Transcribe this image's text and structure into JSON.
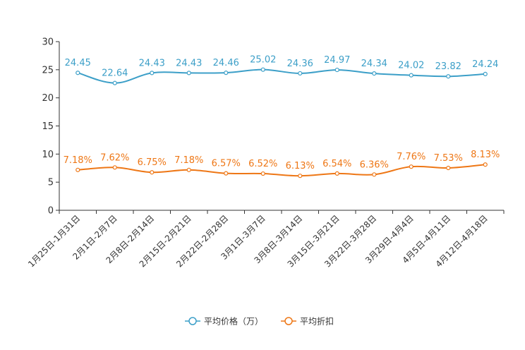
{
  "chart_data": {
    "type": "line",
    "categories": [
      "1月25日-1月31日",
      "2月1日-2月7日",
      "2月8日-2月14日",
      "2月15日-2月21日",
      "2月22日-2月28日",
      "3月1日-3月7日",
      "3月8日-3月14日",
      "3月15日-3月21日",
      "3月22日-3月28日",
      "3月29日-4月4日",
      "4月5日-4月11日",
      "4月12日-4月18日"
    ],
    "ylim": [
      0,
      30
    ],
    "yticks": [
      "0",
      "5",
      "10",
      "15",
      "20",
      "25",
      "30"
    ],
    "series": [
      {
        "name": "平均价格（万）",
        "color": "#3c9fc8",
        "values": [
          24.45,
          22.64,
          24.43,
          24.43,
          24.46,
          25.02,
          24.36,
          24.97,
          24.34,
          24.02,
          23.82,
          24.24
        ],
        "labels": [
          "24.45",
          "22.64",
          "24.43",
          "24.43",
          "24.46",
          "25.02",
          "24.36",
          "24.97",
          "24.34",
          "24.02",
          "23.82",
          "24.24"
        ]
      },
      {
        "name": "平均折扣",
        "color": "#ee7716",
        "values": [
          7.18,
          7.62,
          6.75,
          7.18,
          6.57,
          6.52,
          6.13,
          6.54,
          6.36,
          7.76,
          7.53,
          8.13
        ],
        "labels": [
          "7.18%",
          "7.62%",
          "6.75%",
          "7.18%",
          "6.57%",
          "6.52%",
          "6.13%",
          "6.54%",
          "6.36%",
          "7.76%",
          "7.53%",
          "8.13%"
        ]
      }
    ]
  }
}
